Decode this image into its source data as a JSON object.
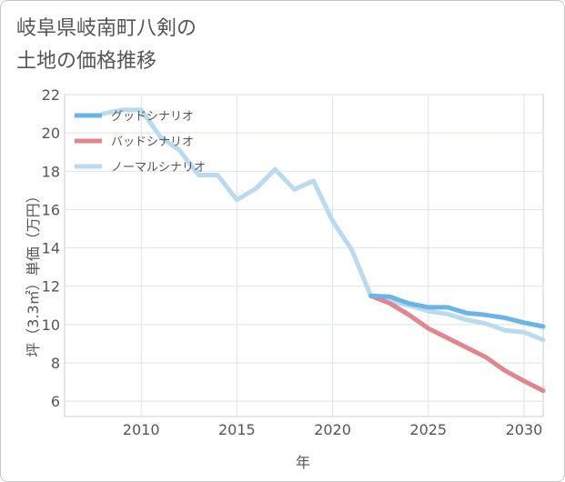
{
  "title_lines": [
    "岐阜県岐南町八剣の",
    "土地の価格推移"
  ],
  "chart_data": {
    "type": "line",
    "xlabel": "年",
    "ylabel": "坪（3.3㎡）単価（万円）",
    "xlim": [
      2006,
      2031
    ],
    "ylim": [
      5.2,
      22
    ],
    "xticks": [
      2010,
      2015,
      2020,
      2025,
      2030
    ],
    "yticks": [
      6,
      8,
      10,
      12,
      14,
      16,
      18,
      20,
      22
    ],
    "grid": true,
    "legend_position": "top-left",
    "series": [
      {
        "name": "グッドシナリオ",
        "color": "#6ab4e8",
        "x": [
          2022,
          2023,
          2024,
          2025,
          2026,
          2027,
          2028,
          2029,
          2030,
          2031
        ],
        "values": [
          11.5,
          11.45,
          11.1,
          10.9,
          10.9,
          10.6,
          10.5,
          10.35,
          10.1,
          9.9
        ]
      },
      {
        "name": "バッドシナリオ",
        "color": "#e0878e",
        "x": [
          2022,
          2023,
          2024,
          2025,
          2026,
          2027,
          2028,
          2029,
          2030,
          2031
        ],
        "values": [
          11.5,
          11.1,
          10.5,
          9.8,
          9.3,
          8.8,
          8.3,
          7.6,
          7.05,
          6.55
        ]
      },
      {
        "name": "ノーマルシナリオ",
        "color": "#b9daef",
        "x": [
          2008,
          2009,
          2010,
          2011,
          2012,
          2013,
          2014,
          2015,
          2016,
          2017,
          2018,
          2019,
          2020,
          2021,
          2022,
          2023,
          2024,
          2025,
          2026,
          2027,
          2028,
          2029,
          2030,
          2031
        ],
        "values": [
          21.0,
          21.2,
          21.2,
          19.8,
          19.1,
          17.8,
          17.8,
          16.5,
          17.1,
          18.1,
          17.05,
          17.5,
          15.4,
          13.9,
          11.5,
          11.2,
          11.0,
          10.7,
          10.55,
          10.25,
          10.05,
          9.7,
          9.6,
          9.2
        ]
      }
    ]
  }
}
